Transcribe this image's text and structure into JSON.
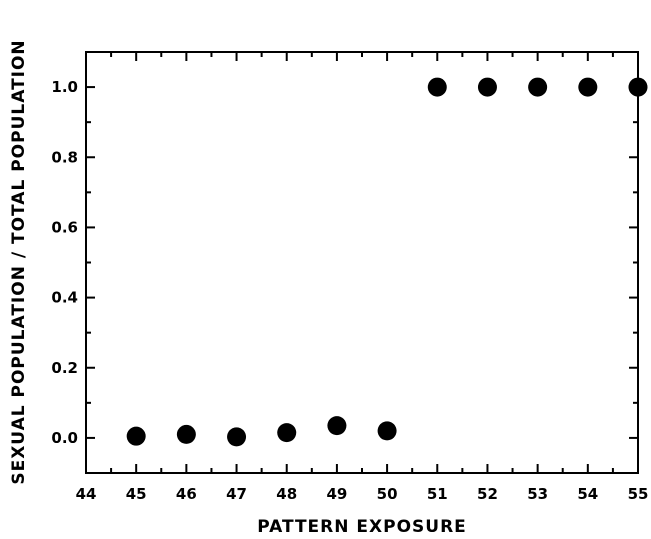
{
  "chart_data": {
    "type": "scatter",
    "xlabel": "PATTERN EXPOSURE",
    "ylabel": "SEXUAL POPULATION / TOTAL POPULATION",
    "xlim": [
      44,
      55
    ],
    "ylim": [
      -0.1,
      1.1
    ],
    "x_ticks": [
      "44",
      "45",
      "46",
      "47",
      "48",
      "49",
      "50",
      "51",
      "52",
      "53",
      "54",
      "55"
    ],
    "y_ticks": [
      "0.0",
      "0.2",
      "0.4",
      "0.6",
      "0.8",
      "1.0"
    ],
    "grid": false,
    "point_color": "#000000",
    "points": [
      {
        "x": 45,
        "y": 0.005
      },
      {
        "x": 46,
        "y": 0.01
      },
      {
        "x": 47,
        "y": 0.003
      },
      {
        "x": 48,
        "y": 0.015
      },
      {
        "x": 49,
        "y": 0.035
      },
      {
        "x": 50,
        "y": 0.02
      },
      {
        "x": 51,
        "y": 1.0
      },
      {
        "x": 52,
        "y": 1.0
      },
      {
        "x": 53,
        "y": 1.0
      },
      {
        "x": 54,
        "y": 1.0
      },
      {
        "x": 55,
        "y": 1.0
      }
    ]
  }
}
